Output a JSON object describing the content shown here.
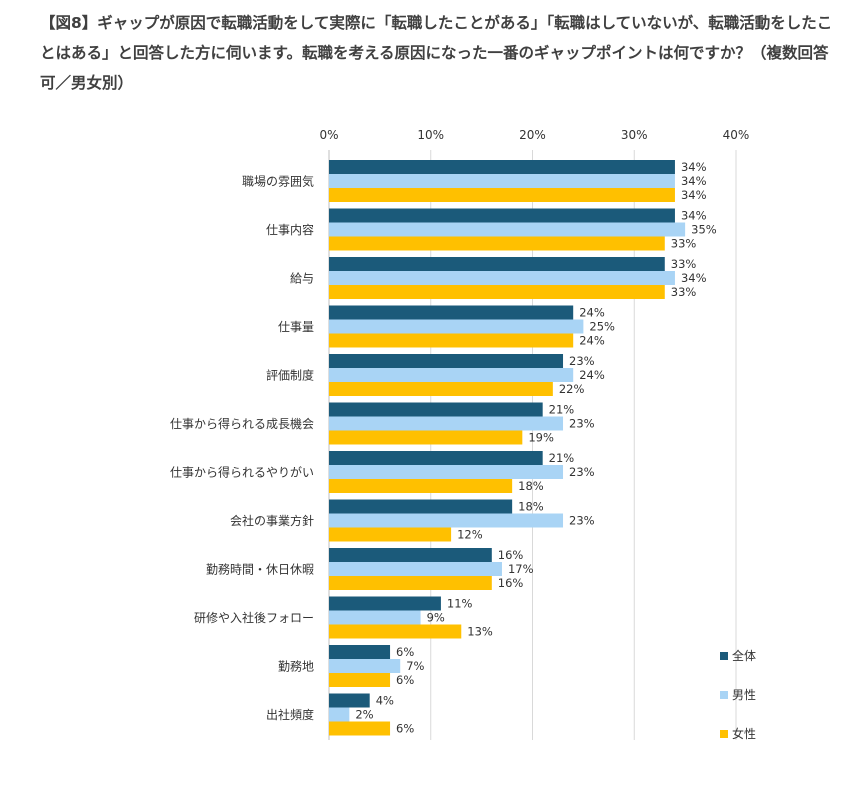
{
  "title": "【図8】ギャップが原因で転職活動をして実際に「転職したことがある」「転職はしていないが、転職活動をしたことはある」と回答した方に伺います。転職を考える原因になった一番のギャップポイントは何ですか？（複数回答可／男女別）",
  "chart_data": {
    "type": "bar",
    "orientation": "horizontal",
    "title": "【図8】ギャップが原因で転職活動をして実際に「転職したことがある」「転職はしていないが、転職活動をしたことはある」と回答した方に伺います。転職を考える原因になった一番のギャップポイントは何ですか？（複数回答可／男女別）",
    "xlim": [
      0,
      40
    ],
    "xticks": [
      0,
      10,
      20,
      30,
      40
    ],
    "tick_suffix": "%",
    "grid": true,
    "legend_position": "right-bottom",
    "categories": [
      "職場の雰囲気",
      "仕事内容",
      "給与",
      "仕事量",
      "評価制度",
      "仕事から得られる成長機会",
      "仕事から得られるやりがい",
      "会社の事業方針",
      "勤務時間・休日休暇",
      "研修や入社後フォロー",
      "勤務地",
      "出社頻度"
    ],
    "series": [
      {
        "name": "全体",
        "color": "#1b5a7a",
        "values": [
          34,
          34,
          33,
          24,
          23,
          21,
          21,
          18,
          16,
          11,
          6,
          4
        ]
      },
      {
        "name": "男性",
        "color": "#a9d4f5",
        "values": [
          34,
          35,
          34,
          25,
          24,
          23,
          23,
          23,
          17,
          9,
          7,
          2
        ]
      },
      {
        "name": "女性",
        "color": "#ffc000",
        "values": [
          34,
          33,
          33,
          24,
          22,
          19,
          18,
          12,
          16,
          13,
          6,
          6
        ]
      }
    ]
  }
}
